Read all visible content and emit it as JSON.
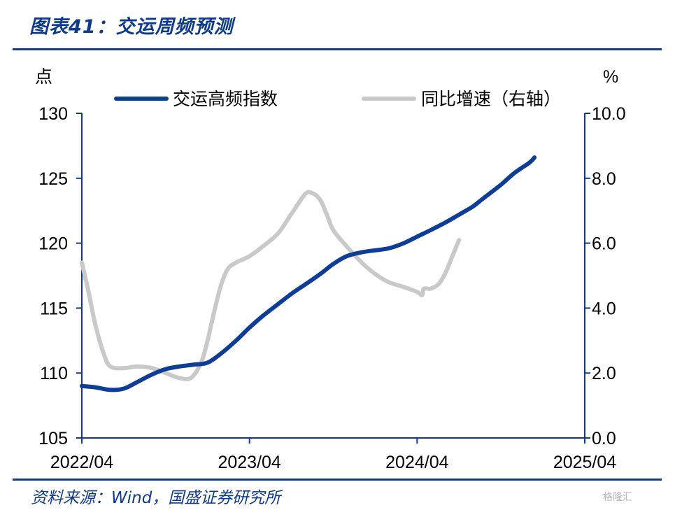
{
  "header": {
    "title": "图表41：交运周频预测"
  },
  "footer": {
    "source": "资料来源：Wind，国盛证券研究所",
    "watermark": "格隆汇"
  },
  "chart_data": {
    "type": "line",
    "title": "图表41：交运周频预测",
    "left_axis": {
      "unit_label": "点",
      "range": [
        105,
        130
      ],
      "ticks": [
        "105",
        "110",
        "115",
        "120",
        "125",
        "130"
      ]
    },
    "right_axis": {
      "unit_label": "%",
      "range": [
        0,
        10
      ],
      "ticks": [
        "0.0",
        "2.0",
        "4.0",
        "6.0",
        "8.0",
        "10.0"
      ]
    },
    "x_range": [
      2022.25,
      2025.25
    ],
    "x_ticks": [
      {
        "t": 2022.25,
        "label": "2022/04"
      },
      {
        "t": 2023.25,
        "label": "2023/04"
      },
      {
        "t": 2024.25,
        "label": "2024/04"
      },
      {
        "t": 2025.25,
        "label": "2025/04"
      }
    ],
    "grid": false,
    "legend_position": "top",
    "series": [
      {
        "name": "交运高频指数",
        "axis": "left",
        "color": "#0d3d96",
        "points": [
          [
            2022.25,
            109.0
          ],
          [
            2022.33,
            108.9
          ],
          [
            2022.42,
            108.7
          ],
          [
            2022.5,
            108.8
          ],
          [
            2022.58,
            109.3
          ],
          [
            2022.67,
            109.9
          ],
          [
            2022.75,
            110.3
          ],
          [
            2022.83,
            110.5
          ],
          [
            2022.92,
            110.65
          ],
          [
            2023.0,
            110.8
          ],
          [
            2023.08,
            111.5
          ],
          [
            2023.17,
            112.5
          ],
          [
            2023.25,
            113.5
          ],
          [
            2023.33,
            114.4
          ],
          [
            2023.42,
            115.3
          ],
          [
            2023.5,
            116.1
          ],
          [
            2023.58,
            116.8
          ],
          [
            2023.67,
            117.6
          ],
          [
            2023.75,
            118.4
          ],
          [
            2023.83,
            119.0
          ],
          [
            2023.92,
            119.3
          ],
          [
            2024.0,
            119.45
          ],
          [
            2024.08,
            119.6
          ],
          [
            2024.17,
            120.0
          ],
          [
            2024.25,
            120.5
          ],
          [
            2024.33,
            121.0
          ],
          [
            2024.42,
            121.6
          ],
          [
            2024.5,
            122.2
          ],
          [
            2024.58,
            122.8
          ],
          [
            2024.62,
            123.2
          ],
          [
            2024.67,
            123.7
          ],
          [
            2024.75,
            124.5
          ],
          [
            2024.83,
            125.4
          ],
          [
            2024.92,
            126.2
          ],
          [
            2024.95,
            126.6
          ]
        ]
      },
      {
        "name": "同比增速（右轴）",
        "axis": "right",
        "color": "#c9c9c9",
        "points": [
          [
            2022.25,
            5.4
          ],
          [
            2022.29,
            4.5
          ],
          [
            2022.33,
            3.5
          ],
          [
            2022.38,
            2.6
          ],
          [
            2022.42,
            2.2
          ],
          [
            2022.5,
            2.15
          ],
          [
            2022.58,
            2.2
          ],
          [
            2022.67,
            2.15
          ],
          [
            2022.75,
            2.0
          ],
          [
            2022.83,
            1.85
          ],
          [
            2022.9,
            1.85
          ],
          [
            2022.96,
            2.3
          ],
          [
            2023.0,
            3.0
          ],
          [
            2023.04,
            3.9
          ],
          [
            2023.08,
            4.7
          ],
          [
            2023.12,
            5.2
          ],
          [
            2023.17,
            5.4
          ],
          [
            2023.25,
            5.6
          ],
          [
            2023.33,
            5.9
          ],
          [
            2023.42,
            6.3
          ],
          [
            2023.5,
            6.9
          ],
          [
            2023.58,
            7.5
          ],
          [
            2023.62,
            7.55
          ],
          [
            2023.67,
            7.35
          ],
          [
            2023.71,
            6.9
          ],
          [
            2023.75,
            6.4
          ],
          [
            2023.83,
            5.9
          ],
          [
            2023.92,
            5.4
          ],
          [
            2024.0,
            5.05
          ],
          [
            2024.08,
            4.8
          ],
          [
            2024.17,
            4.65
          ],
          [
            2024.25,
            4.5
          ],
          [
            2024.28,
            4.4
          ],
          [
            2024.29,
            4.6
          ],
          [
            2024.33,
            4.6
          ],
          [
            2024.38,
            4.75
          ],
          [
            2024.42,
            5.1
          ],
          [
            2024.46,
            5.6
          ],
          [
            2024.5,
            6.1
          ]
        ]
      }
    ]
  }
}
